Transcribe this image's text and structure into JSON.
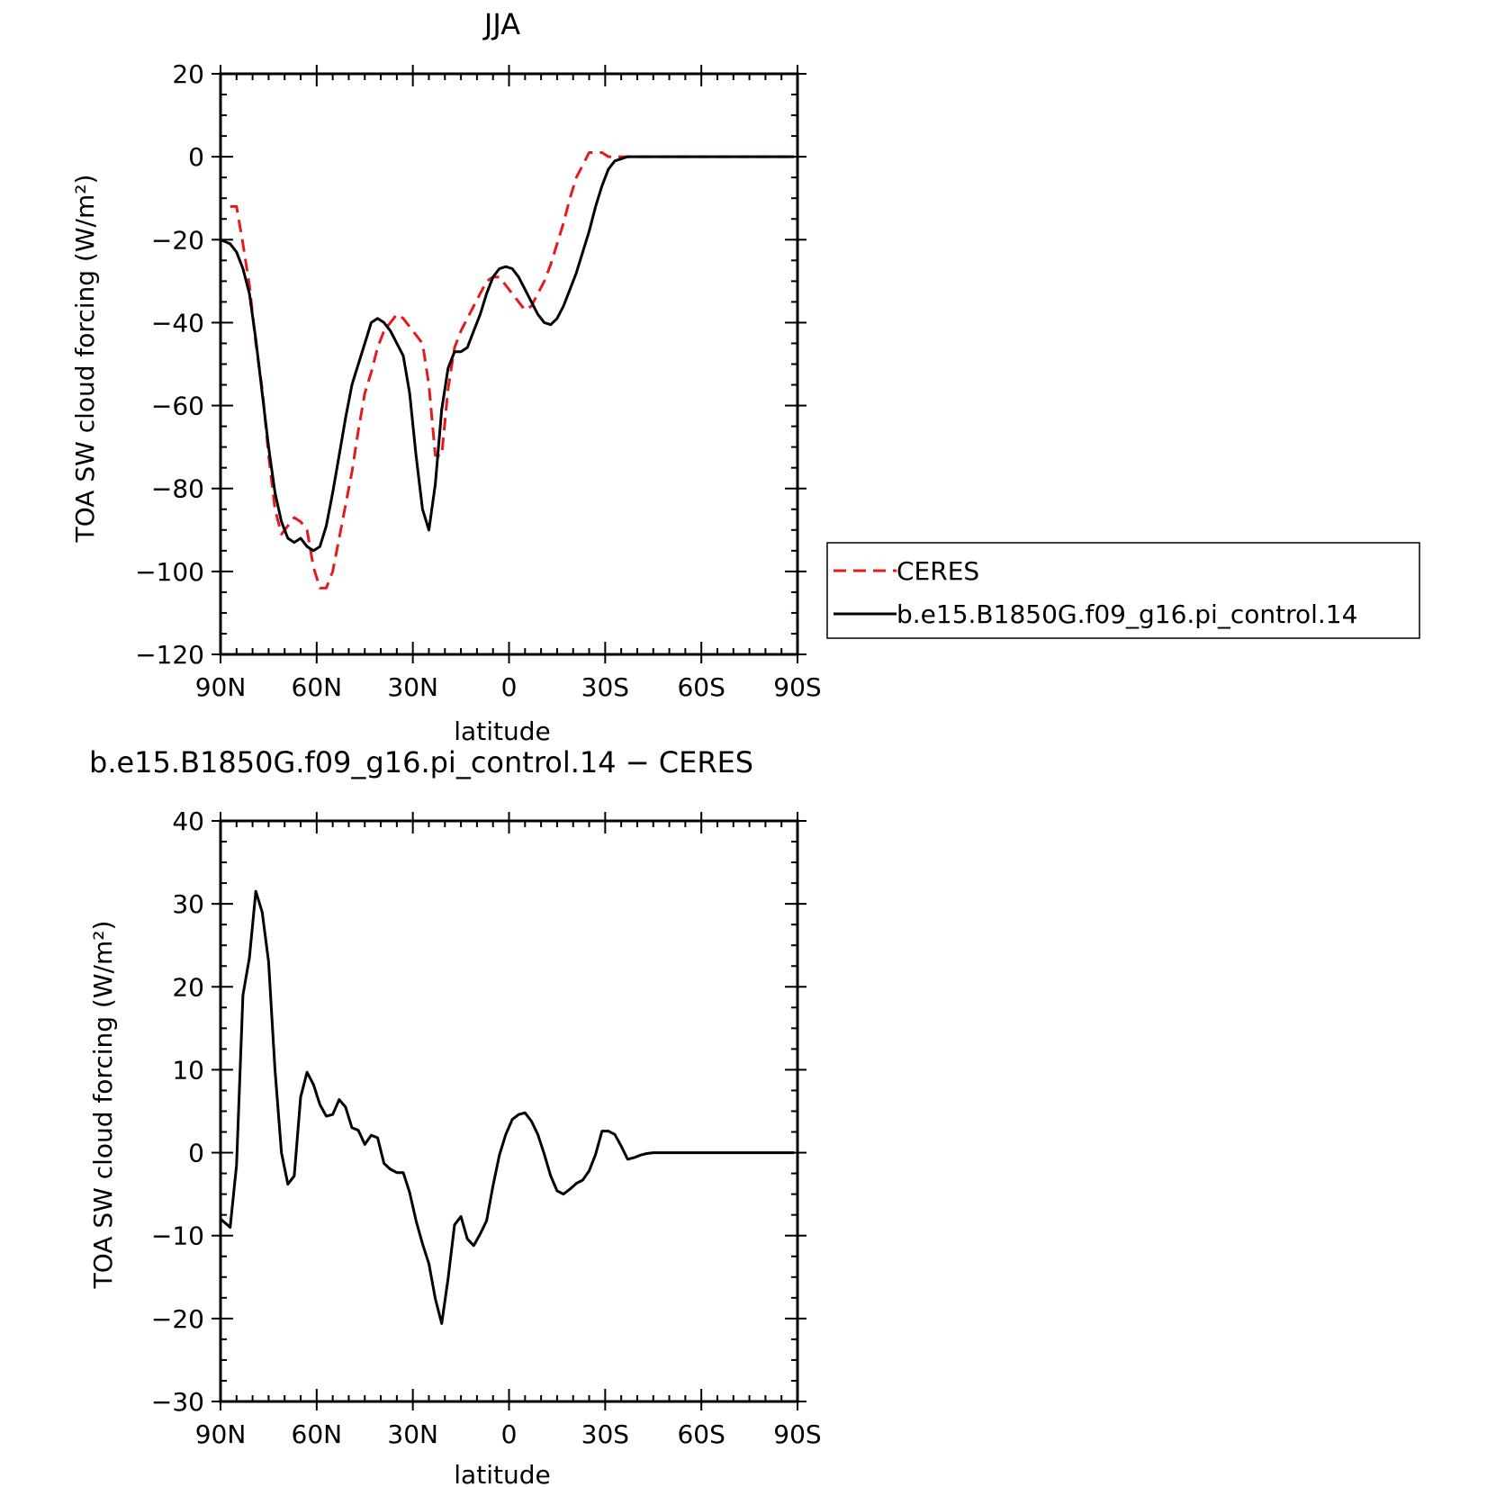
{
  "chart_data": [
    {
      "type": "line",
      "title": "JJA",
      "xlabel": "latitude",
      "ylabel": "TOA SW cloud forcing (W/m²)",
      "xlim": [
        90,
        -90
      ],
      "ylim": [
        -120,
        20
      ],
      "x_ticks": [
        90,
        60,
        30,
        0,
        -30,
        -60,
        -90
      ],
      "x_tick_labels": [
        "90N",
        "60N",
        "30N",
        "0",
        "30S",
        "60S",
        "90S"
      ],
      "y_ticks": [
        20,
        0,
        -20,
        -40,
        -60,
        -80,
        -100,
        -120
      ],
      "y_tick_labels": [
        "20",
        "0",
        "−20",
        "−40",
        "−60",
        "−80",
        "−100",
        "−120"
      ],
      "legend_placement": "right",
      "series": [
        {
          "name": "CERES",
          "color": "#e41a1c",
          "dash": "dashed",
          "x": [
            87,
            85,
            83,
            81,
            79,
            77,
            75,
            73,
            71,
            69,
            67,
            65,
            63,
            61,
            59,
            57,
            55,
            53,
            51,
            49,
            47,
            45,
            43,
            41,
            39,
            37,
            35,
            33,
            31,
            29,
            27,
            25,
            23,
            21,
            19,
            17,
            15,
            13,
            11,
            9,
            7,
            5,
            3,
            1,
            -1,
            -3,
            -5,
            -7,
            -9,
            -11,
            -13,
            -15,
            -17,
            -19,
            -21,
            -23,
            -25,
            -27,
            -29,
            -31,
            -33,
            -35,
            -37,
            -39,
            -41,
            -43,
            -45,
            -47,
            -49,
            -51,
            -53,
            -55,
            -57,
            -59,
            -61,
            -63,
            -65,
            -67,
            -69,
            -71,
            -73,
            -75,
            -77,
            -79,
            -81,
            -83,
            -85,
            -87,
            -89
          ],
          "values": [
            -12,
            -12,
            -21,
            -31,
            -45,
            -56,
            -72,
            -85,
            -91,
            -89,
            -87,
            -88,
            -90,
            -99,
            -104,
            -104,
            -100,
            -92,
            -84,
            -76,
            -66,
            -57,
            -52,
            -46,
            -42,
            -40,
            -38,
            -39,
            -41,
            -43,
            -45,
            -55,
            -72,
            -72,
            -56,
            -46,
            -42,
            -39,
            -36,
            -33,
            -30,
            -29,
            -29,
            -31,
            -33,
            -35,
            -37,
            -36,
            -33,
            -30,
            -26,
            -21,
            -16,
            -10,
            -5,
            -2,
            1,
            1,
            1,
            0,
            0,
            0,
            0,
            0,
            0,
            0,
            0,
            0,
            0,
            0,
            0,
            0,
            0,
            0,
            0,
            0,
            0,
            0,
            0,
            0,
            0,
            0,
            0,
            0,
            0,
            0,
            0,
            0,
            0
          ]
        },
        {
          "name": "b.e15.B1850G.f09_g16.pi_control.14",
          "color": "#000000",
          "dash": "solid",
          "x": [
            90,
            87,
            85,
            83,
            81,
            79,
            77,
            75,
            73,
            71,
            69,
            67,
            65,
            63,
            61,
            59,
            57,
            55,
            53,
            51,
            49,
            47,
            45,
            43,
            41,
            39,
            37,
            35,
            33,
            31,
            29,
            27,
            25,
            23,
            21,
            19,
            17,
            15,
            13,
            11,
            9,
            7,
            5,
            3,
            1,
            -1,
            -3,
            -5,
            -7,
            -9,
            -11,
            -13,
            -15,
            -17,
            -19,
            -21,
            -23,
            -25,
            -27,
            -29,
            -31,
            -33,
            -35,
            -37,
            -39,
            -41,
            -43,
            -45,
            -47,
            -49,
            -51,
            -53,
            -55,
            -57,
            -59,
            -61,
            -63,
            -65,
            -67,
            -69,
            -71,
            -73,
            -75,
            -77,
            -79,
            -81,
            -83,
            -85,
            -87,
            -89
          ],
          "values": [
            -20,
            -21,
            -23,
            -27,
            -33,
            -44,
            -57,
            -70,
            -81,
            -88,
            -92,
            -93,
            -92,
            -94,
            -95,
            -94,
            -89,
            -81,
            -72,
            -63,
            -55,
            -50,
            -45,
            -40,
            -39,
            -40,
            -42,
            -45,
            -48,
            -57,
            -72,
            -85,
            -90,
            -79,
            -61,
            -51,
            -47,
            -47,
            -46,
            -42,
            -38,
            -33,
            -29,
            -27,
            -26.5,
            -27,
            -29,
            -32,
            -35,
            -38,
            -40,
            -40.5,
            -39,
            -36,
            -32,
            -28,
            -23,
            -18,
            -12,
            -7,
            -3,
            -1,
            -0.5,
            0,
            0,
            0,
            0,
            0,
            0,
            0,
            0,
            0,
            0,
            0,
            0,
            0,
            0,
            0,
            0,
            0,
            0,
            0,
            0,
            0,
            0,
            0,
            0,
            0,
            0,
            0
          ]
        }
      ]
    },
    {
      "type": "line",
      "title": "b.e15.B1850G.f09_g16.pi_control.14 − CERES",
      "xlabel": "latitude",
      "ylabel": "TOA SW cloud forcing (W/m²)",
      "xlim": [
        90,
        -90
      ],
      "ylim": [
        -30,
        40
      ],
      "x_ticks": [
        90,
        60,
        30,
        0,
        -30,
        -60,
        -90
      ],
      "x_tick_labels": [
        "90N",
        "60N",
        "30N",
        "0",
        "30S",
        "60S",
        "90S"
      ],
      "y_ticks": [
        40,
        30,
        20,
        10,
        0,
        -10,
        -20,
        -30
      ],
      "y_tick_labels": [
        "40",
        "30",
        "20",
        "10",
        "0",
        "−10",
        "−20",
        "−30"
      ],
      "series": [
        {
          "color": "#000000",
          "dash": "solid",
          "x": [
            90,
            87,
            85,
            83,
            81,
            79,
            77,
            75,
            73,
            71,
            69,
            67,
            65,
            63,
            61,
            59,
            57,
            55,
            53,
            51,
            49,
            47,
            45,
            43,
            41,
            39,
            37,
            35,
            33,
            31,
            29,
            27,
            25,
            23,
            21,
            19,
            17,
            15,
            13,
            11,
            9,
            7,
            5,
            3,
            1,
            -1,
            -3,
            -5,
            -7,
            -9,
            -11,
            -13,
            -15,
            -17,
            -19,
            -21,
            -23,
            -25,
            -27,
            -29,
            -31,
            -33,
            -35,
            -37,
            -39,
            -41,
            -43,
            -45,
            -47,
            -49,
            -51,
            -53,
            -55,
            -57,
            -59,
            -61,
            -63,
            -65,
            -67,
            -69,
            -71,
            -73,
            -75,
            -77,
            -79,
            -81,
            -83,
            -85,
            -87,
            -89
          ],
          "values": [
            -8,
            -9,
            -1.5,
            19,
            23.5,
            31.5,
            29,
            23,
            10,
            0,
            -3.8,
            -2.8,
            6.7,
            9.7,
            8.2,
            5.8,
            4.4,
            4.6,
            6.4,
            5.5,
            3,
            2.7,
            1,
            2.1,
            1.8,
            -1.3,
            -2,
            -2.4,
            -2.4,
            -4.8,
            -8.2,
            -11,
            -13.4,
            -17.6,
            -20.6,
            -15.2,
            -8.7,
            -7.7,
            -10.4,
            -11.2,
            -9.8,
            -8.2,
            -4,
            -0.3,
            2.2,
            4,
            4.6,
            4.8,
            3.8,
            2.2,
            -0.2,
            -2.8,
            -4.6,
            -5,
            -4.4,
            -3.7,
            -3.3,
            -2.2,
            -0.2,
            2.6,
            2.6,
            2.2,
            0.8,
            -0.8,
            -0.6,
            -0.3,
            -0.1,
            0,
            0,
            0,
            0,
            0,
            0,
            0,
            0,
            0,
            0,
            0,
            0,
            0,
            0,
            0,
            0,
            0,
            0,
            0,
            0,
            0,
            0,
            0
          ]
        }
      ]
    }
  ]
}
